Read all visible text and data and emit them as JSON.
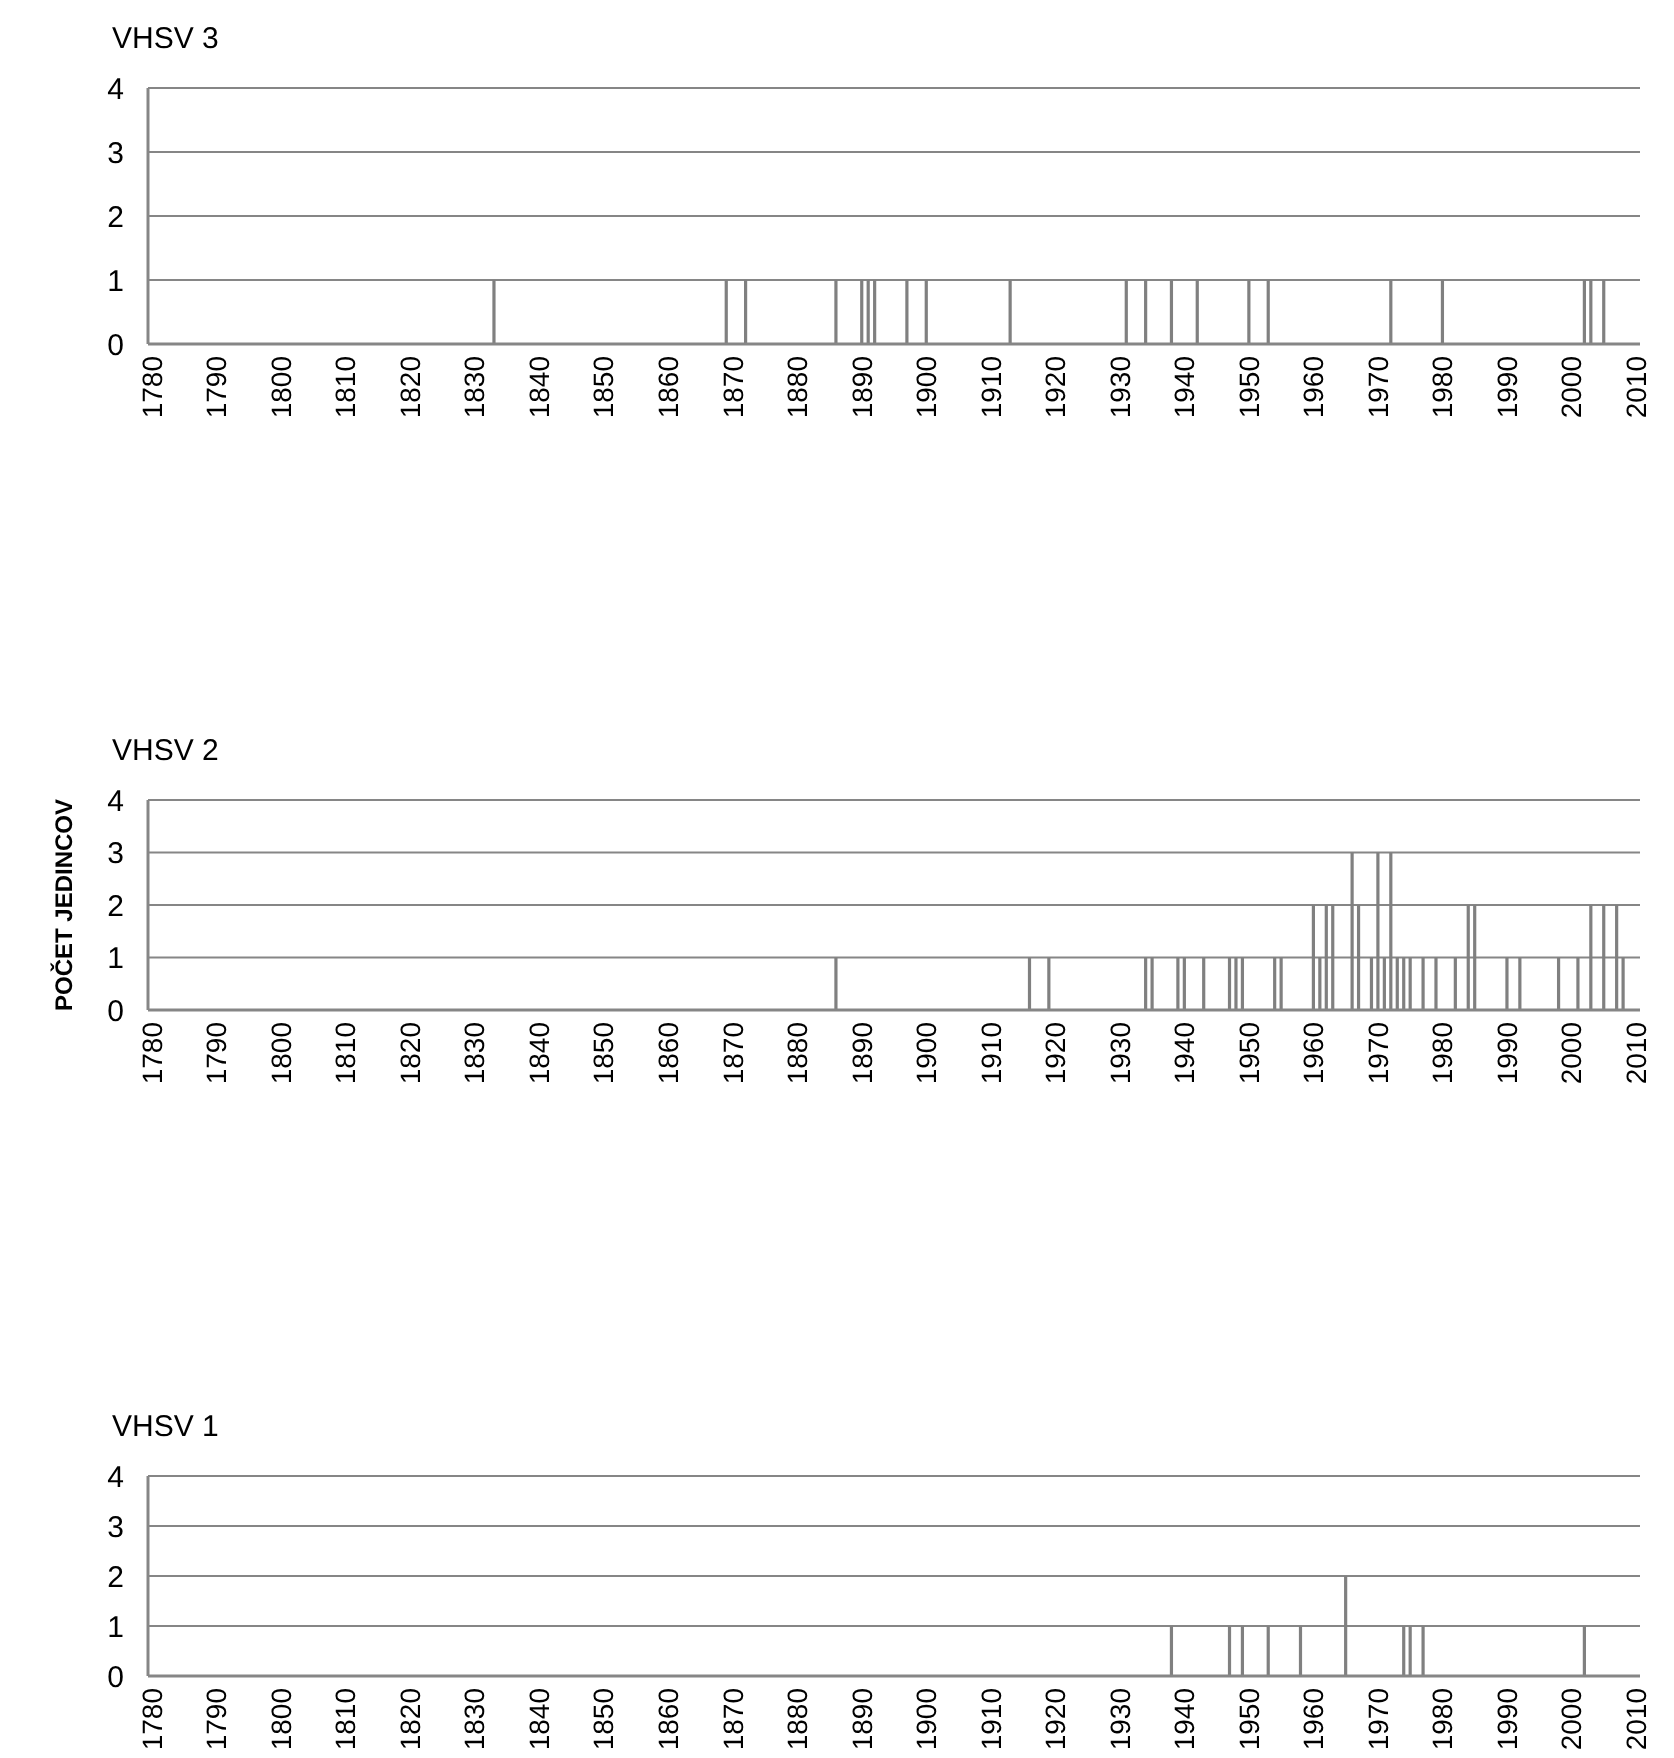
{
  "chart_data": [
    {
      "type": "bar",
      "title": "VHSV 3",
      "x": [
        1833,
        1869,
        1872,
        1886,
        1890,
        1891,
        1892,
        1897,
        1900,
        1913,
        1931,
        1934,
        1938,
        1942,
        1950,
        1953,
        1972,
        1980,
        2002,
        2003,
        2005
      ],
      "values": [
        1,
        1,
        1,
        1,
        1,
        1,
        1,
        1,
        1,
        1,
        1,
        1,
        1,
        1,
        1,
        1,
        1,
        1,
        1,
        1,
        1
      ],
      "color": "#808080",
      "xlim": [
        1780,
        2010
      ],
      "xticks": [
        1780,
        1790,
        1800,
        1810,
        1820,
        1830,
        1840,
        1850,
        1860,
        1870,
        1880,
        1890,
        1900,
        1910,
        1920,
        1930,
        1940,
        1950,
        1960,
        1970,
        1980,
        1990,
        2000,
        2010
      ],
      "ylim": [
        0,
        4
      ],
      "yticks": [
        0,
        1,
        2,
        3,
        4
      ],
      "grid": "y"
    },
    {
      "type": "bar",
      "title": "VHSV 2",
      "ylabel": "POČET JEDINCOV",
      "x": [
        1886,
        1916,
        1919,
        1934,
        1935,
        1939,
        1940,
        1943,
        1947,
        1948,
        1949,
        1954,
        1955,
        1960,
        1961,
        1962,
        1963,
        1966,
        1967,
        1969,
        1970,
        1971,
        1972,
        1973,
        1974,
        1975,
        1977,
        1979,
        1982,
        1984,
        1985,
        1990,
        1992,
        1998,
        2001,
        2003,
        2005,
        2007,
        2008
      ],
      "values": [
        1,
        1,
        1,
        1,
        1,
        1,
        1,
        1,
        1,
        1,
        1,
        1,
        1,
        2,
        1,
        2,
        2,
        3,
        2,
        1,
        3,
        1,
        3,
        1,
        1,
        1,
        1,
        1,
        1,
        2,
        2,
        1,
        1,
        1,
        1,
        2,
        2,
        2,
        1
      ],
      "color": "#808080",
      "xlim": [
        1780,
        2010
      ],
      "xticks": [
        1780,
        1790,
        1800,
        1810,
        1820,
        1830,
        1840,
        1850,
        1860,
        1870,
        1880,
        1890,
        1900,
        1910,
        1920,
        1930,
        1940,
        1950,
        1960,
        1970,
        1980,
        1990,
        2000,
        2010
      ],
      "ylim": [
        0,
        4
      ],
      "yticks": [
        0,
        1,
        2,
        3,
        4
      ],
      "grid": "y"
    },
    {
      "type": "bar",
      "title": "VHSV 1",
      "x": [
        1938,
        1947,
        1949,
        1953,
        1958,
        1965,
        1974,
        1975,
        1977,
        2002
      ],
      "values": [
        1,
        1,
        1,
        1,
        1,
        2,
        1,
        1,
        1,
        1
      ],
      "color": "#808080",
      "xlim": [
        1780,
        2010
      ],
      "xticks": [
        1780,
        1790,
        1800,
        1810,
        1820,
        1830,
        1840,
        1850,
        1860,
        1870,
        1880,
        1890,
        1900,
        1910,
        1920,
        1930,
        1940,
        1950,
        1960,
        1970,
        1980,
        1990,
        2000,
        2010
      ],
      "ylim": [
        0,
        4
      ],
      "yticks": [
        0,
        1,
        2,
        3,
        4
      ],
      "grid": "y"
    }
  ]
}
